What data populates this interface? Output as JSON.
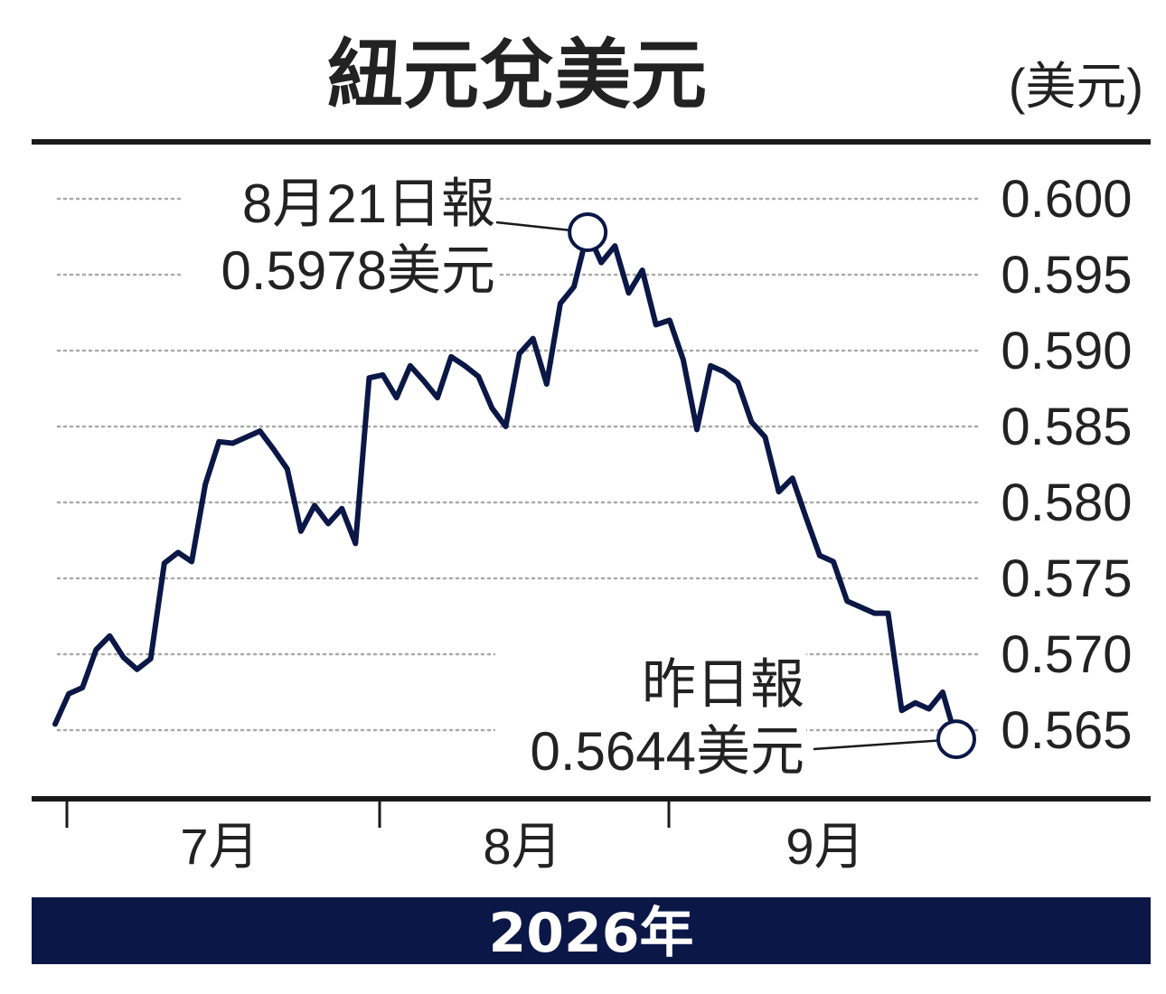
{
  "chart_data": {
    "type": "line",
    "title": "紐元兌美元",
    "unit_label": "(美元)",
    "ylim": [
      0.565,
      0.6
    ],
    "y_ticks": [
      "0.600",
      "0.595",
      "0.590",
      "0.585",
      "0.580",
      "0.575",
      "0.570",
      "0.565"
    ],
    "x_month_labels": [
      "7月",
      "8月",
      "9月"
    ],
    "year_label": "2026年",
    "grid": true,
    "series": [
      {
        "values": [
          0.5654,
          0.5674,
          0.5678,
          0.5703,
          0.5712,
          0.5698,
          0.569,
          0.5697,
          0.576,
          0.5767,
          0.5761,
          0.5812,
          0.584,
          0.5839,
          0.5843,
          0.5847,
          0.5835,
          0.5822,
          0.5781,
          0.5798,
          0.5786,
          0.5796,
          0.5773,
          0.5882,
          0.5884,
          0.5869,
          0.589,
          0.588,
          0.5869,
          0.5896,
          0.589,
          0.5883,
          0.5862,
          0.585,
          0.5898,
          0.5908,
          0.5878,
          0.5931,
          0.5942,
          0.5978,
          0.5958,
          0.5969,
          0.5938,
          0.5953,
          0.5917,
          0.592,
          0.5894,
          0.5848,
          0.589,
          0.5886,
          0.5879,
          0.5853,
          0.5843,
          0.5807,
          0.5816,
          0.579,
          0.5765,
          0.5761,
          0.5735,
          0.5731,
          0.5727,
          0.5727,
          0.5663,
          0.5668,
          0.5664,
          0.5675,
          0.5644
        ],
        "color": "#0b1746"
      }
    ],
    "annotations": [
      {
        "point_index": 39,
        "label_line1": "8月21日報",
        "label_line2": "0.5978美元"
      },
      {
        "point_index": 66,
        "label_line1": "昨日報",
        "label_line2": "0.5644美元"
      }
    ]
  },
  "colors": {
    "navy": "#0b1746",
    "text": "#222222",
    "grid": "#a9a9a9"
  }
}
